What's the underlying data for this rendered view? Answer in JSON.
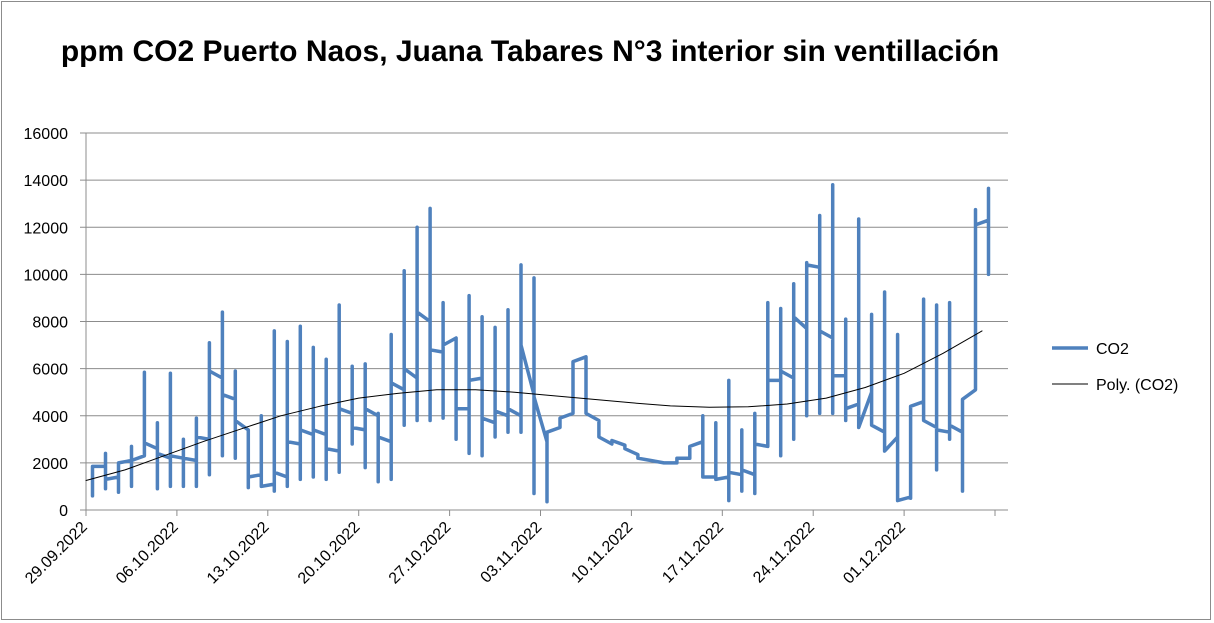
{
  "chart_data": {
    "type": "line",
    "title": "ppm CO2 Puerto Naos, Juana Tabares N°3 interior sin ventillación",
    "xlabel": "",
    "ylabel": "",
    "ylim": [
      0,
      16000
    ],
    "yticks": [
      "0",
      "2000",
      "4000",
      "6000",
      "8000",
      "10000",
      "12000",
      "14000",
      "16000"
    ],
    "x_range": [
      "2022-09-29",
      "2022-12-09"
    ],
    "xtick_labels": [
      "29.09.2022",
      "06.10.2022",
      "13.10.2022",
      "20.10.2022",
      "27.10.2022",
      "03.11.2022",
      "10.11.2022",
      "17.11.2022",
      "24.11.2022",
      "01.12.2022"
    ],
    "grid": true,
    "legend": "right",
    "series": [
      {
        "name": "CO2",
        "color": "#4f81bd",
        "points": [
          [
            "2022-09-29",
            600
          ],
          [
            "2022-09-29",
            1850
          ],
          [
            "2022-09-30",
            1850
          ],
          [
            "2022-09-30",
            900
          ],
          [
            "2022-09-30",
            2400
          ],
          [
            "2022-09-30",
            1300
          ],
          [
            "2022-10-01",
            1400
          ],
          [
            "2022-10-01",
            750
          ],
          [
            "2022-10-01",
            2000
          ],
          [
            "2022-10-02",
            2100
          ],
          [
            "2022-10-02",
            1000
          ],
          [
            "2022-10-02",
            2700
          ],
          [
            "2022-10-02",
            2100
          ],
          [
            "2022-10-03",
            2300
          ],
          [
            "2022-10-03",
            5850
          ],
          [
            "2022-10-03",
            2850
          ],
          [
            "2022-10-04",
            2600
          ],
          [
            "2022-10-04",
            900
          ],
          [
            "2022-10-04",
            3700
          ],
          [
            "2022-10-04",
            2400
          ],
          [
            "2022-10-05",
            2200
          ],
          [
            "2022-10-05",
            5800
          ],
          [
            "2022-10-05",
            1000
          ],
          [
            "2022-10-05",
            2300
          ],
          [
            "2022-10-06",
            2200
          ],
          [
            "2022-10-06",
            1000
          ],
          [
            "2022-10-06",
            3000
          ],
          [
            "2022-10-06",
            2200
          ],
          [
            "2022-10-07",
            2100
          ],
          [
            "2022-10-07",
            1000
          ],
          [
            "2022-10-07",
            3900
          ],
          [
            "2022-10-07",
            3100
          ],
          [
            "2022-10-08",
            3000
          ],
          [
            "2022-10-08",
            1500
          ],
          [
            "2022-10-08",
            7100
          ],
          [
            "2022-10-08",
            5900
          ],
          [
            "2022-10-09",
            5600
          ],
          [
            "2022-10-09",
            8400
          ],
          [
            "2022-10-09",
            2300
          ],
          [
            "2022-10-09",
            4900
          ],
          [
            "2022-10-10",
            4700
          ],
          [
            "2022-10-10",
            2200
          ],
          [
            "2022-10-10",
            5900
          ],
          [
            "2022-10-10",
            3800
          ],
          [
            "2022-10-11",
            3400
          ],
          [
            "2022-10-11",
            950
          ],
          [
            "2022-10-11",
            1400
          ],
          [
            "2022-10-12",
            1500
          ],
          [
            "2022-10-12",
            4000
          ],
          [
            "2022-10-12",
            1000
          ],
          [
            "2022-10-13",
            1100
          ],
          [
            "2022-10-13",
            800
          ],
          [
            "2022-10-13",
            7600
          ],
          [
            "2022-10-13",
            1600
          ],
          [
            "2022-10-14",
            1400
          ],
          [
            "2022-10-14",
            1000
          ],
          [
            "2022-10-14",
            7150
          ],
          [
            "2022-10-14",
            2900
          ],
          [
            "2022-10-15",
            2800
          ],
          [
            "2022-10-15",
            1300
          ],
          [
            "2022-10-15",
            7800
          ],
          [
            "2022-10-15",
            3400
          ],
          [
            "2022-10-16",
            3200
          ],
          [
            "2022-10-16",
            1400
          ],
          [
            "2022-10-16",
            6900
          ],
          [
            "2022-10-16",
            3400
          ],
          [
            "2022-10-17",
            3200
          ],
          [
            "2022-10-17",
            1300
          ],
          [
            "2022-10-17",
            6400
          ],
          [
            "2022-10-17",
            2600
          ],
          [
            "2022-10-18",
            2500
          ],
          [
            "2022-10-18",
            8700
          ],
          [
            "2022-10-18",
            1600
          ],
          [
            "2022-10-18",
            4300
          ],
          [
            "2022-10-19",
            4100
          ],
          [
            "2022-10-19",
            2800
          ],
          [
            "2022-10-19",
            6100
          ],
          [
            "2022-10-19",
            3500
          ],
          [
            "2022-10-20",
            3400
          ],
          [
            "2022-10-20",
            6200
          ],
          [
            "2022-10-20",
            1800
          ],
          [
            "2022-10-20",
            4300
          ],
          [
            "2022-10-21",
            4000
          ],
          [
            "2022-10-21",
            1200
          ],
          [
            "2022-10-21",
            4100
          ],
          [
            "2022-10-21",
            3100
          ],
          [
            "2022-10-22",
            2900
          ],
          [
            "2022-10-22",
            7450
          ],
          [
            "2022-10-22",
            1300
          ],
          [
            "2022-10-22",
            5400
          ],
          [
            "2022-10-23",
            5100
          ],
          [
            "2022-10-23",
            3600
          ],
          [
            "2022-10-23",
            10150
          ],
          [
            "2022-10-23",
            6000
          ],
          [
            "2022-10-24",
            5600
          ],
          [
            "2022-10-24",
            3800
          ],
          [
            "2022-10-24",
            12000
          ],
          [
            "2022-10-24",
            8400
          ],
          [
            "2022-10-25",
            8000
          ],
          [
            "2022-10-25",
            12800
          ],
          [
            "2022-10-25",
            3800
          ],
          [
            "2022-10-25",
            6800
          ],
          [
            "2022-10-26",
            6700
          ],
          [
            "2022-10-26",
            8800
          ],
          [
            "2022-10-26",
            3900
          ],
          [
            "2022-10-26",
            7000
          ],
          [
            "2022-10-27",
            7300
          ],
          [
            "2022-10-27",
            3000
          ],
          [
            "2022-10-27",
            4300
          ],
          [
            "2022-10-28",
            4300
          ],
          [
            "2022-10-28",
            2400
          ],
          [
            "2022-10-28",
            9100
          ],
          [
            "2022-10-28",
            5500
          ],
          [
            "2022-10-29",
            5600
          ],
          [
            "2022-10-29",
            2300
          ],
          [
            "2022-10-29",
            8200
          ],
          [
            "2022-10-29",
            3900
          ],
          [
            "2022-10-30",
            3700
          ],
          [
            "2022-10-30",
            7750
          ],
          [
            "2022-10-30",
            3100
          ],
          [
            "2022-10-30",
            4200
          ],
          [
            "2022-10-31",
            4000
          ],
          [
            "2022-10-31",
            3300
          ],
          [
            "2022-10-31",
            8500
          ],
          [
            "2022-10-31",
            4300
          ],
          [
            "2022-11-01",
            4000
          ],
          [
            "2022-11-01",
            3300
          ],
          [
            "2022-11-01",
            10400
          ],
          [
            "2022-11-01",
            7000
          ],
          [
            "2022-11-02",
            4900
          ],
          [
            "2022-11-02",
            700
          ],
          [
            "2022-11-02",
            9850
          ],
          [
            "2022-11-02",
            4800
          ],
          [
            "2022-11-03",
            2900
          ],
          [
            "2022-11-03",
            350
          ],
          [
            "2022-11-03",
            3300
          ],
          [
            "2022-11-04",
            3500
          ],
          [
            "2022-11-04",
            3900
          ],
          [
            "2022-11-05",
            4100
          ],
          [
            "2022-11-05",
            6300
          ],
          [
            "2022-11-06",
            6500
          ],
          [
            "2022-11-06",
            4100
          ],
          [
            "2022-11-07",
            3800
          ],
          [
            "2022-11-07",
            3100
          ],
          [
            "2022-11-08",
            2800
          ],
          [
            "2022-11-08",
            2950
          ],
          [
            "2022-11-09",
            2750
          ],
          [
            "2022-11-09",
            2600
          ],
          [
            "2022-11-10",
            2350
          ],
          [
            "2022-11-10",
            2200
          ],
          [
            "2022-11-11",
            2100
          ],
          [
            "2022-11-12",
            2000
          ],
          [
            "2022-11-13",
            2000
          ],
          [
            "2022-11-13",
            2200
          ],
          [
            "2022-11-14",
            2200
          ],
          [
            "2022-11-14",
            2700
          ],
          [
            "2022-11-15",
            2900
          ],
          [
            "2022-11-15",
            4000
          ],
          [
            "2022-11-15",
            1400
          ],
          [
            "2022-11-16",
            1400
          ],
          [
            "2022-11-16",
            3700
          ],
          [
            "2022-11-16",
            1300
          ],
          [
            "2022-11-17",
            1400
          ],
          [
            "2022-11-17",
            5500
          ],
          [
            "2022-11-17",
            400
          ],
          [
            "2022-11-17",
            1600
          ],
          [
            "2022-11-18",
            1500
          ],
          [
            "2022-11-18",
            3400
          ],
          [
            "2022-11-18",
            800
          ],
          [
            "2022-11-18",
            1700
          ],
          [
            "2022-11-19",
            1500
          ],
          [
            "2022-11-19",
            4100
          ],
          [
            "2022-11-19",
            700
          ],
          [
            "2022-11-19",
            2800
          ],
          [
            "2022-11-20",
            2700
          ],
          [
            "2022-11-20",
            8800
          ],
          [
            "2022-11-20",
            5600
          ],
          [
            "2022-11-20",
            5500
          ],
          [
            "2022-11-21",
            5500
          ],
          [
            "2022-11-21",
            8550
          ],
          [
            "2022-11-21",
            2300
          ],
          [
            "2022-11-21",
            5900
          ],
          [
            "2022-11-22",
            5600
          ],
          [
            "2022-11-22",
            9600
          ],
          [
            "2022-11-22",
            3000
          ],
          [
            "2022-11-22",
            8200
          ],
          [
            "2022-11-23",
            7700
          ],
          [
            "2022-11-23",
            4000
          ],
          [
            "2022-11-23",
            10500
          ],
          [
            "2022-11-23",
            10400
          ],
          [
            "2022-11-24",
            10300
          ],
          [
            "2022-11-24",
            12500
          ],
          [
            "2022-11-24",
            4100
          ],
          [
            "2022-11-24",
            7600
          ],
          [
            "2022-11-25",
            7300
          ],
          [
            "2022-11-25",
            13800
          ],
          [
            "2022-11-25",
            4100
          ],
          [
            "2022-11-25",
            5700
          ],
          [
            "2022-11-26",
            5700
          ],
          [
            "2022-11-26",
            8100
          ],
          [
            "2022-11-26",
            3800
          ],
          [
            "2022-11-26",
            4300
          ],
          [
            "2022-11-27",
            4500
          ],
          [
            "2022-11-27",
            12350
          ],
          [
            "2022-11-27",
            3500
          ],
          [
            "2022-11-28",
            5000
          ],
          [
            "2022-11-28",
            8300
          ],
          [
            "2022-11-28",
            3600
          ],
          [
            "2022-11-29",
            3300
          ],
          [
            "2022-11-29",
            9250
          ],
          [
            "2022-11-29",
            2500
          ],
          [
            "2022-11-30",
            3100
          ],
          [
            "2022-11-30",
            2900
          ],
          [
            "2022-11-30",
            7450
          ],
          [
            "2022-11-30",
            400
          ],
          [
            "2022-12-01",
            550
          ],
          [
            "2022-12-01",
            500
          ],
          [
            "2022-12-01",
            4400
          ],
          [
            "2022-12-02",
            4600
          ],
          [
            "2022-12-02",
            8950
          ],
          [
            "2022-12-02",
            3800
          ],
          [
            "2022-12-03",
            3500
          ],
          [
            "2022-12-03",
            1700
          ],
          [
            "2022-12-03",
            8700
          ],
          [
            "2022-12-03",
            3400
          ],
          [
            "2022-12-04",
            3300
          ],
          [
            "2022-12-04",
            3000
          ],
          [
            "2022-12-04",
            8800
          ],
          [
            "2022-12-04",
            3600
          ],
          [
            "2022-12-05",
            3300
          ],
          [
            "2022-12-05",
            800
          ],
          [
            "2022-12-05",
            4700
          ],
          [
            "2022-12-06",
            5100
          ],
          [
            "2022-12-06",
            12750
          ],
          [
            "2022-12-06",
            12100
          ],
          [
            "2022-12-07",
            12300
          ],
          [
            "2022-12-07",
            13650
          ],
          [
            "2022-12-07",
            10000
          ]
        ]
      },
      {
        "name": "Poly. (CO2)",
        "color": "#000000",
        "points": [
          [
            "2022-09-29",
            1250
          ],
          [
            "2022-10-02",
            1700
          ],
          [
            "2022-10-05",
            2300
          ],
          [
            "2022-10-08",
            2900
          ],
          [
            "2022-10-11",
            3450
          ],
          [
            "2022-10-14",
            4000
          ],
          [
            "2022-10-17",
            4400
          ],
          [
            "2022-10-20",
            4750
          ],
          [
            "2022-10-23",
            4950
          ],
          [
            "2022-10-26",
            5100
          ],
          [
            "2022-10-29",
            5100
          ],
          [
            "2022-11-01",
            5000
          ],
          [
            "2022-11-04",
            4850
          ],
          [
            "2022-11-07",
            4700
          ],
          [
            "2022-11-10",
            4550
          ],
          [
            "2022-11-13",
            4420
          ],
          [
            "2022-11-16",
            4360
          ],
          [
            "2022-11-19",
            4380
          ],
          [
            "2022-11-22",
            4500
          ],
          [
            "2022-11-25",
            4750
          ],
          [
            "2022-11-28",
            5200
          ],
          [
            "2022-12-01",
            5800
          ],
          [
            "2022-12-04",
            6650
          ],
          [
            "2022-12-07",
            7600
          ]
        ]
      }
    ]
  }
}
